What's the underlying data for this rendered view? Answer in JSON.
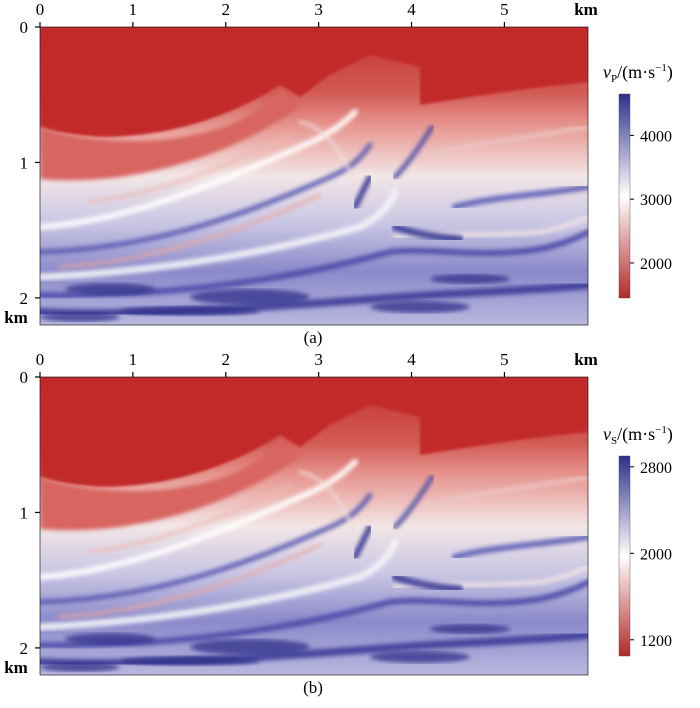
{
  "chart_data": [
    {
      "type": "heatmap",
      "panel_label": "(a)",
      "x_ticks": [
        "0",
        "1",
        "2",
        "3",
        "4",
        "5"
      ],
      "x_tick_values": [
        0,
        1,
        2,
        3,
        4,
        5
      ],
      "x_unit": "km",
      "y_ticks": [
        "0",
        "1",
        "2"
      ],
      "y_tick_values": [
        0,
        1,
        2
      ],
      "y_unit": "km",
      "xlim": [
        0,
        5.9
      ],
      "ylim": [
        0,
        2.2
      ],
      "colorbar": {
        "label": "v",
        "subscript": "P",
        "unit": "/(m·s",
        "unit_exp": "−1",
        "unit_close": ")",
        "ticks": [
          "4000",
          "3000",
          "2000"
        ],
        "tick_values": [
          4000,
          3000,
          2000
        ],
        "range": [
          1450,
          4650
        ],
        "colors": [
          "#b22a2a",
          "#ffffff",
          "#2e2e8c"
        ]
      }
    },
    {
      "type": "heatmap",
      "panel_label": "(b)",
      "x_ticks": [
        "0",
        "1",
        "2",
        "3",
        "4",
        "5"
      ],
      "x_tick_values": [
        0,
        1,
        2,
        3,
        4,
        5
      ],
      "x_unit": "km",
      "y_ticks": [
        "0",
        "1",
        "2"
      ],
      "y_tick_values": [
        0,
        1,
        2
      ],
      "y_unit": "km",
      "xlim": [
        0,
        5.9
      ],
      "ylim": [
        0,
        2.2
      ],
      "colorbar": {
        "label": "v",
        "subscript": "S",
        "unit": "/(m·s",
        "unit_exp": "−1",
        "unit_close": ")",
        "ticks": [
          "2800",
          "2000",
          "1200"
        ],
        "tick_values": [
          2800,
          2000,
          1200
        ],
        "range": [
          1050,
          2900
        ],
        "colors": [
          "#b22a2a",
          "#ffffff",
          "#2e2e8c"
        ]
      }
    }
  ]
}
